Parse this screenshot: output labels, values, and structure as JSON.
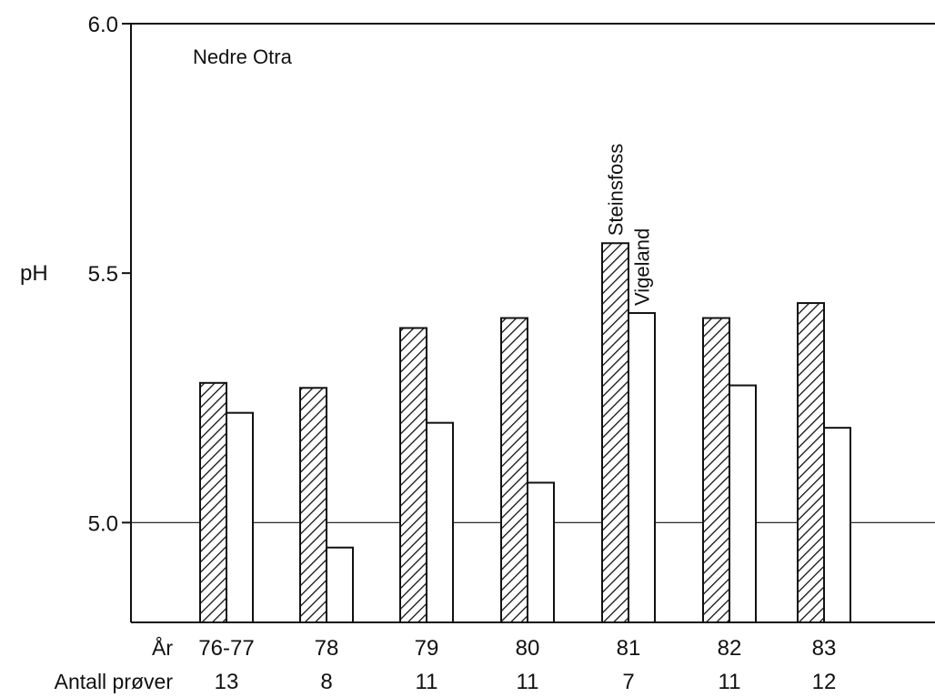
{
  "chart_data": {
    "type": "bar",
    "title": "Nedre Otra",
    "ylabel": "pH",
    "ylim": [
      4.8,
      6.0
    ],
    "yticks": [
      "5.0",
      "5.5",
      "6.0"
    ],
    "reference_line": 5.0,
    "categories": [
      "76-77",
      "78",
      "79",
      "80",
      "81",
      "82",
      "83"
    ],
    "row_labels": {
      "year": "År",
      "samples": "Antall prøver"
    },
    "samples": [
      "13",
      "8",
      "11",
      "11",
      "7",
      "11",
      "12"
    ],
    "series": [
      {
        "name": "Steinsfoss",
        "pattern": "hatched",
        "values": [
          5.28,
          5.27,
          5.39,
          5.41,
          5.56,
          5.41,
          5.44
        ]
      },
      {
        "name": "Vigeland",
        "pattern": "open",
        "values": [
          5.22,
          4.95,
          5.2,
          5.08,
          5.42,
          5.275,
          5.19
        ]
      }
    ],
    "grid": false,
    "legend": "none"
  },
  "colors": {
    "ink": "#111111",
    "background": "#ffffff"
  }
}
